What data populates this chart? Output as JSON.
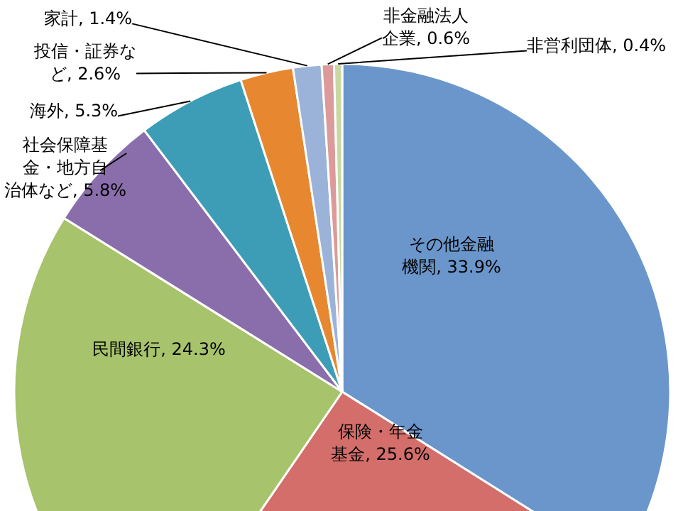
{
  "chart_data": {
    "type": "pie",
    "categories": [
      "その他金融機関",
      "保険・年金基金",
      "民間銀行",
      "社会保障基金・地方自治体など",
      "海外",
      "投信・証券など",
      "家計",
      "非金融法人企業",
      "非営利団体"
    ],
    "values": [
      33.9,
      25.6,
      24.3,
      5.8,
      5.3,
      2.6,
      1.4,
      0.6,
      0.4
    ],
    "value_labels": [
      "33.9%",
      "25.6%",
      "24.3%",
      "5.8%",
      "5.3%",
      "2.6%",
      "1.4%",
      "0.6%",
      "0.4%"
    ],
    "colors": [
      "#6a96cb",
      "#d36e6b",
      "#a7c36b",
      "#8a6eac",
      "#3d9db6",
      "#e7872f",
      "#9cb3d9",
      "#dc9a9a",
      "#c8d8a0"
    ]
  }
}
